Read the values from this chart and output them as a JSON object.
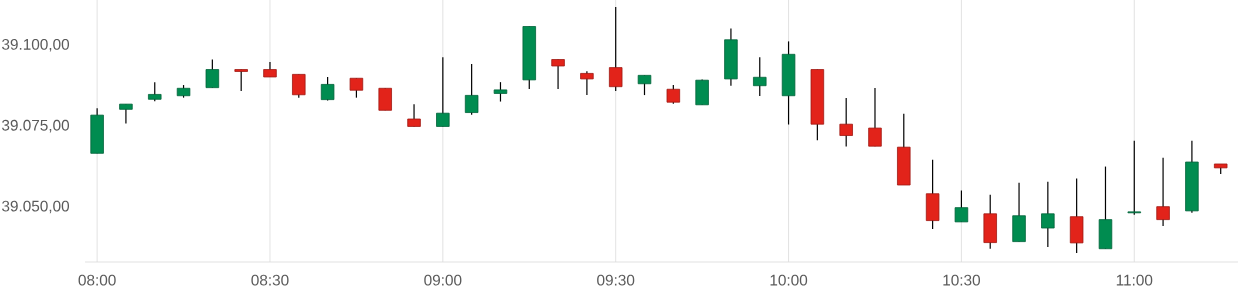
{
  "chart_data": {
    "type": "candlestick",
    "x": [
      8.0,
      8.0833,
      8.1667,
      8.25,
      8.3333,
      8.4167,
      8.5,
      8.5833,
      8.6667,
      8.75,
      8.8333,
      8.9167,
      9.0,
      9.0833,
      9.1667,
      9.25,
      9.3333,
      9.4167,
      9.5,
      9.5833,
      9.6667,
      9.75,
      9.8333,
      9.9167,
      10.0,
      10.0833,
      10.1667,
      10.25,
      10.3333,
      10.4167,
      10.5,
      10.5833,
      10.6667,
      10.75,
      10.8333,
      10.9167,
      11.0,
      11.0833,
      11.1667,
      11.25
    ],
    "ohlc": [
      [
        39066.6,
        39080.5,
        39066.6,
        39078.4
      ],
      [
        39080.2,
        39081.8,
        39075.8,
        39081.8
      ],
      [
        39083.3,
        39088.6,
        39082.7,
        39084.8
      ],
      [
        39084.4,
        39087.7,
        39083.8,
        39086.7
      ],
      [
        39086.9,
        39095.6,
        39086.9,
        39092.5
      ],
      [
        39092.5,
        39092.5,
        39085.9,
        39091.9
      ],
      [
        39092.5,
        39094.8,
        39090.2,
        39090.2
      ],
      [
        39091.0,
        39091.0,
        39083.8,
        39084.7
      ],
      [
        39083.2,
        39090.2,
        39082.9,
        39087.9
      ],
      [
        39089.8,
        39089.8,
        39083.8,
        39086.1
      ],
      [
        39086.7,
        39086.7,
        39079.9,
        39079.9
      ],
      [
        39077.2,
        39081.8,
        39074.9,
        39074.9
      ],
      [
        39074.9,
        39096.3,
        39074.9,
        39079.0
      ],
      [
        39079.2,
        39094.2,
        39078.5,
        39084.5
      ],
      [
        39085.1,
        39088.6,
        39082.6,
        39086.2
      ],
      [
        39089.3,
        39105.8,
        39086.5,
        39105.8
      ],
      [
        39095.6,
        39095.6,
        39086.5,
        39093.6
      ],
      [
        39091.3,
        39092.0,
        39084.6,
        39089.6
      ],
      [
        39093.1,
        39111.8,
        39085.9,
        39087.2
      ],
      [
        39088.1,
        39090.7,
        39084.6,
        39090.7
      ],
      [
        39086.4,
        39087.7,
        39081.9,
        39082.4
      ],
      [
        39081.6,
        39089.4,
        39081.6,
        39089.2
      ],
      [
        39089.6,
        39105.2,
        39087.5,
        39101.7
      ],
      [
        39087.5,
        39096.3,
        39084.3,
        39090.1
      ],
      [
        39084.4,
        39101.2,
        39075.5,
        39097.2
      ],
      [
        39092.5,
        39092.5,
        39070.6,
        39075.6
      ],
      [
        39075.6,
        39083.7,
        39068.7,
        39072.1
      ],
      [
        39074.4,
        39086.8,
        39068.8,
        39068.8
      ],
      [
        39068.5,
        39078.8,
        39056.8,
        39056.8
      ],
      [
        39054.1,
        39064.6,
        39043.2,
        39045.8
      ],
      [
        39045.4,
        39055.1,
        39045.4,
        39049.8
      ],
      [
        39047.9,
        39053.8,
        39037.1,
        39039.0
      ],
      [
        39039.3,
        39057.5,
        39039.3,
        39047.3
      ],
      [
        39043.5,
        39057.8,
        39037.6,
        39047.9
      ],
      [
        39047.0,
        39058.8,
        39035.8,
        39038.9
      ],
      [
        39037.1,
        39062.5,
        39037.1,
        39046.1
      ],
      [
        39048.2,
        39070.5,
        39047.6,
        39048.5
      ],
      [
        39050.1,
        39065.2,
        39044.1,
        39046.1
      ],
      [
        39048.8,
        39070.5,
        39048.2,
        39063.9
      ],
      [
        39063.3,
        39063.3,
        39060.2,
        39062.1
      ]
    ],
    "colors": [
      "#008c50",
      "#008c50",
      "#008c50",
      "#008c50",
      "#008c50",
      "#e2231a",
      "#e2231a",
      "#e2231a",
      "#008c50",
      "#e2231a",
      "#e2231a",
      "#e2231a",
      "#008c50",
      "#008c50",
      "#008c50",
      "#008c50",
      "#e2231a",
      "#e2231a",
      "#e2231a",
      "#008c50",
      "#e2231a",
      "#008c50",
      "#008c50",
      "#008c50",
      "#008c50",
      "#e2231a",
      "#e2231a",
      "#e2231a",
      "#e2231a",
      "#e2231a",
      "#008c50",
      "#e2231a",
      "#008c50",
      "#008c50",
      "#e2231a",
      "#008c50",
      "#008c50",
      "#e2231a",
      "#008c50",
      "#e2231a"
    ],
    "xlim": [
      7.965,
      11.3
    ],
    "ylim": [
      39033,
      39114
    ],
    "xticks": [
      {
        "value": 8.0,
        "label": "08:00"
      },
      {
        "value": 8.5,
        "label": "08:30"
      },
      {
        "value": 9.0,
        "label": "09:00"
      },
      {
        "value": 9.5,
        "label": "09:30"
      },
      {
        "value": 10.0,
        "label": "10:00"
      },
      {
        "value": 10.5,
        "label": "10:30"
      },
      {
        "value": 11.0,
        "label": "11:00"
      }
    ],
    "yticks": [
      {
        "value": 39050,
        "label": "39.050,00"
      },
      {
        "value": 39075,
        "label": "39.075,00"
      },
      {
        "value": 39100,
        "label": "39.100,00"
      }
    ],
    "grid": "x"
  }
}
